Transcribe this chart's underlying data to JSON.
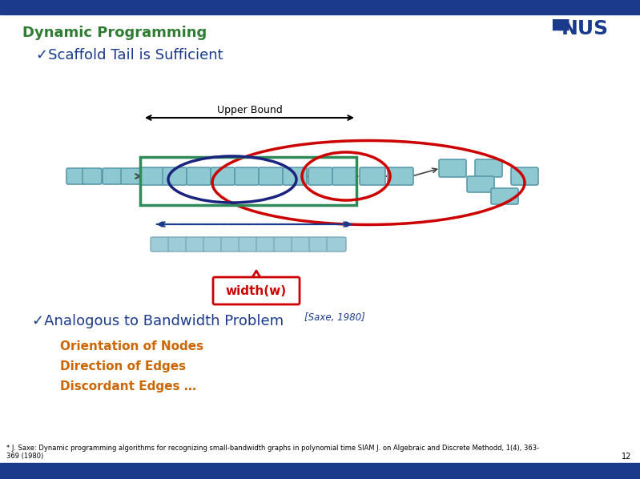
{
  "title": "Dynamic Programming",
  "title_color": "#2E7D32",
  "bg_color": "#FFFFFF",
  "bar_color": "#1a3a8c",
  "bullet1": "✓Scaffold Tail is Sufficient",
  "bullet1_color": "#1a3a8c",
  "upper_bound_label": "Upper Bound",
  "width_label": "width(w)",
  "width_label_color": "#cc0000",
  "bullet2_main": "✓Analogous to Bandwidth Problem",
  "bullet2_cite": "[Saxe, 1980]",
  "bullet2_color": "#1a3a8c",
  "sub_items": [
    "Orientation of Nodes",
    "Direction of Edges",
    "Discordant Edges …"
  ],
  "sub_color": "#cc6600",
  "footnote": "* J. Saxe: Dynamic programming algorithms for recognizing small-bandwidth graphs in polynomial time SIAM J. on Algebraic and Discrete Methodd, 1(4), 363-\n369 (1980)",
  "page_num": "12",
  "node_color": "#8ec8d0",
  "node_edge_color": "#5a9aaa",
  "green_rect_color": "#2e8b57",
  "red_ellipse_color": "#cc0000",
  "dark_blue_ellipse_color": "#1a237e",
  "arrow_blue": "#1a3a8c",
  "small_node_color": "#9ecdd8"
}
